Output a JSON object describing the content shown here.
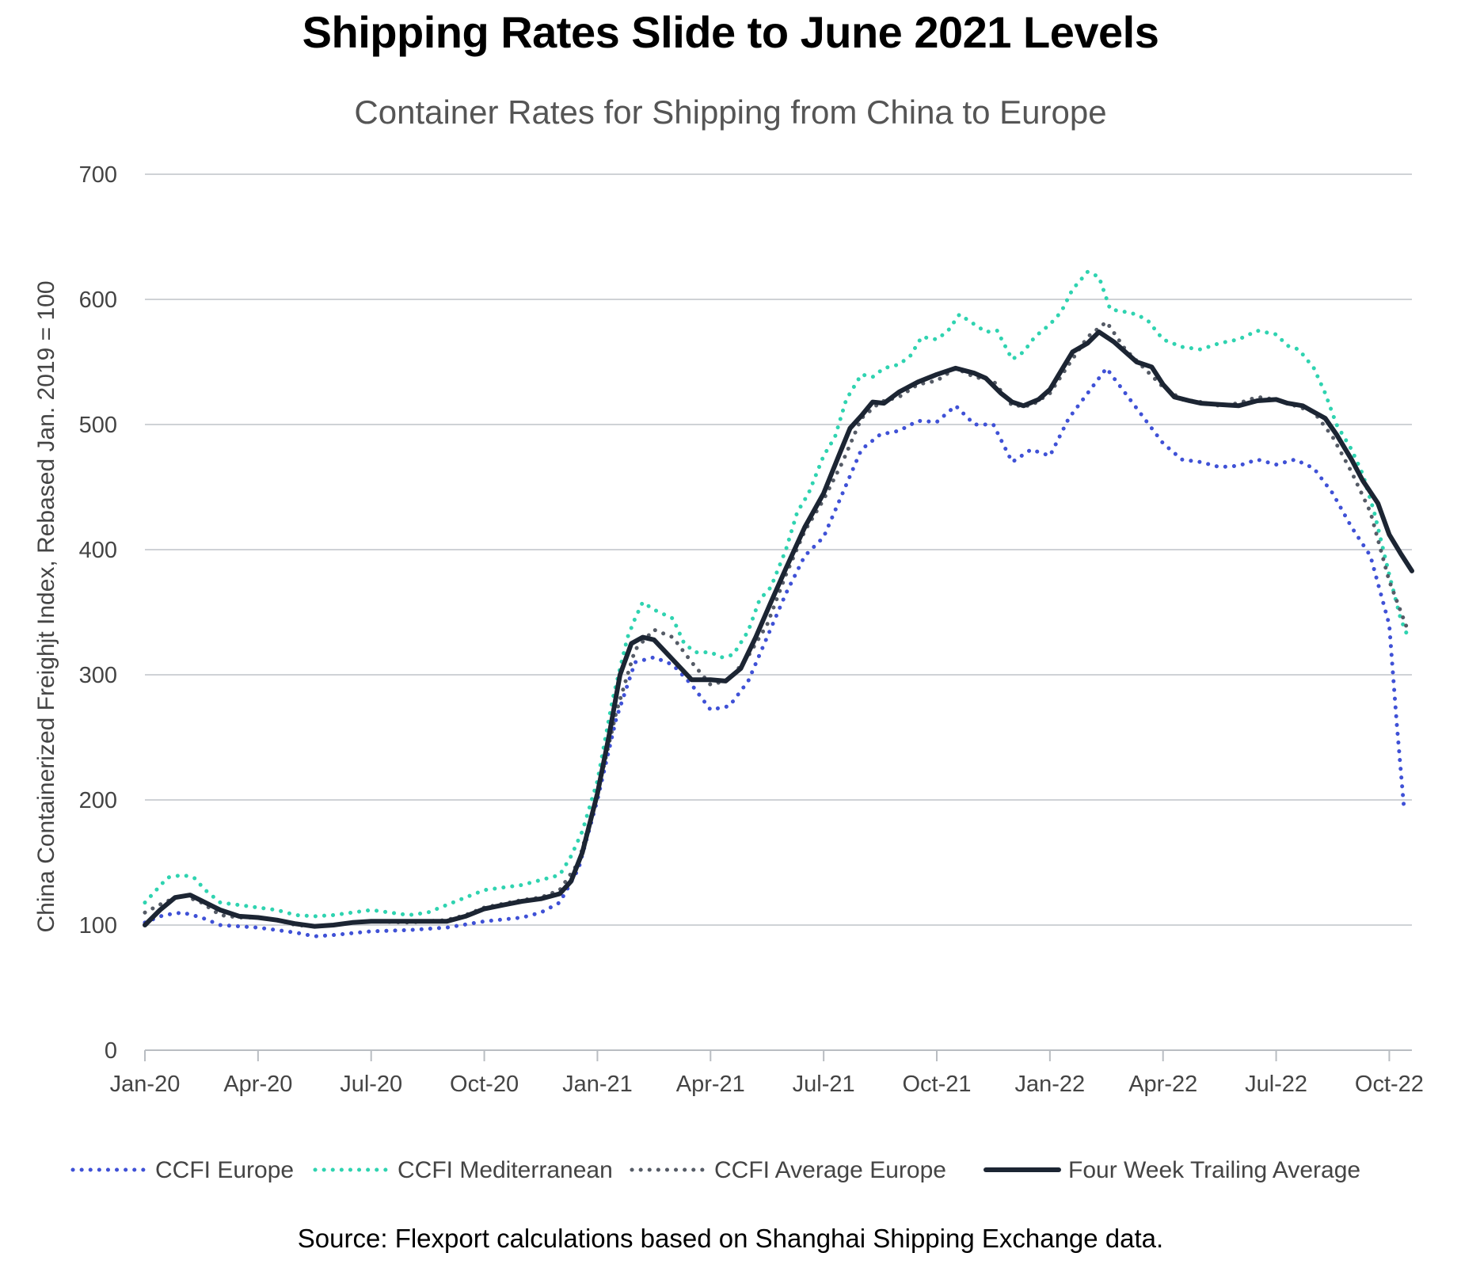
{
  "title": "Shipping Rates Slide to June 2021 Levels",
  "source": "Source: Flexport calculations based on Shanghai Shipping Exchange data.",
  "chart_data": {
    "type": "line",
    "title": "Shipping Rates Slide to June 2021 Levels",
    "subtitle": "Container Rates for Shipping from China to Europe",
    "xlabel": "",
    "ylabel": "China Containerized Freighjt Index, Rebased Jan. 2019 = 100",
    "xlim": [
      0,
      33.6
    ],
    "ylim": [
      0,
      700
    ],
    "yticks": [
      0,
      100,
      200,
      300,
      400,
      500,
      600,
      700
    ],
    "grid": true,
    "legend_position": "bottom",
    "x_ticks": [
      {
        "x": 0,
        "label": "Jan-20"
      },
      {
        "x": 3,
        "label": "Apr-20"
      },
      {
        "x": 6,
        "label": "Jul-20"
      },
      {
        "x": 9,
        "label": "Oct-20"
      },
      {
        "x": 12,
        "label": "Jan-21"
      },
      {
        "x": 15,
        "label": "Apr-21"
      },
      {
        "x": 18,
        "label": "Jul-21"
      },
      {
        "x": 21,
        "label": "Oct-21"
      },
      {
        "x": 24,
        "label": "Jan-22"
      },
      {
        "x": 27,
        "label": "Apr-22"
      },
      {
        "x": 30,
        "label": "Jul-22"
      },
      {
        "x": 33,
        "label": "Oct-22"
      }
    ],
    "x_units": "months since Jan 2020",
    "series": [
      {
        "name": "CCFI Europe",
        "style": "dotted",
        "color": "#3f51d6",
        "points": [
          [
            0,
            102
          ],
          [
            0.5,
            108
          ],
          [
            1,
            110
          ],
          [
            1.5,
            106
          ],
          [
            2,
            100
          ],
          [
            3,
            98
          ],
          [
            4,
            94
          ],
          [
            4.5,
            91
          ],
          [
            5,
            92
          ],
          [
            6,
            95
          ],
          [
            7,
            96
          ],
          [
            7.5,
            97
          ],
          [
            8,
            98
          ],
          [
            9,
            103
          ],
          [
            10,
            106
          ],
          [
            10.5,
            110
          ],
          [
            11,
            118
          ],
          [
            11.5,
            145
          ],
          [
            12,
            200
          ],
          [
            12.5,
            265
          ],
          [
            13,
            310
          ],
          [
            13.5,
            314
          ],
          [
            14,
            308
          ],
          [
            14.5,
            292
          ],
          [
            15,
            272
          ],
          [
            15.5,
            275
          ],
          [
            16,
            295
          ],
          [
            16.5,
            330
          ],
          [
            17,
            365
          ],
          [
            17.5,
            395
          ],
          [
            18,
            410
          ],
          [
            18.5,
            445
          ],
          [
            19,
            480
          ],
          [
            19.5,
            492
          ],
          [
            20,
            495
          ],
          [
            20.5,
            503
          ],
          [
            21,
            502
          ],
          [
            21.5,
            515
          ],
          [
            22,
            500
          ],
          [
            22.5,
            500
          ],
          [
            23,
            470
          ],
          [
            23.5,
            480
          ],
          [
            24,
            475
          ],
          [
            24.5,
            505
          ],
          [
            25,
            525
          ],
          [
            25.5,
            545
          ],
          [
            26,
            525
          ],
          [
            26.5,
            505
          ],
          [
            27,
            485
          ],
          [
            27.5,
            472
          ],
          [
            28,
            470
          ],
          [
            28.5,
            466
          ],
          [
            29,
            467
          ],
          [
            29.5,
            472
          ],
          [
            30,
            468
          ],
          [
            30.5,
            472
          ],
          [
            31,
            465
          ],
          [
            31.5,
            445
          ],
          [
            32,
            418
          ],
          [
            32.5,
            395
          ],
          [
            33,
            340
          ],
          [
            33.2,
            260
          ],
          [
            33.4,
            190
          ]
        ]
      },
      {
        "name": "CCFI Mediterranean",
        "style": "dotted",
        "color": "#2fd3b0",
        "points": [
          [
            0,
            118
          ],
          [
            0.3,
            128
          ],
          [
            0.6,
            138
          ],
          [
            1,
            140
          ],
          [
            1.3,
            138
          ],
          [
            1.6,
            128
          ],
          [
            2,
            118
          ],
          [
            2.5,
            116
          ],
          [
            3,
            114
          ],
          [
            3.5,
            112
          ],
          [
            4,
            108
          ],
          [
            4.5,
            107
          ],
          [
            5,
            108
          ],
          [
            5.5,
            110
          ],
          [
            6,
            112
          ],
          [
            7,
            108
          ],
          [
            7.5,
            110
          ],
          [
            8,
            116
          ],
          [
            8.5,
            122
          ],
          [
            9,
            128
          ],
          [
            9.5,
            130
          ],
          [
            10,
            132
          ],
          [
            10.5,
            136
          ],
          [
            11,
            140
          ],
          [
            11.3,
            155
          ],
          [
            11.6,
            175
          ],
          [
            12,
            215
          ],
          [
            12.4,
            280
          ],
          [
            12.8,
            330
          ],
          [
            13,
            345
          ],
          [
            13.2,
            358
          ],
          [
            13.5,
            352
          ],
          [
            14,
            345
          ],
          [
            14.3,
            325
          ],
          [
            14.6,
            318
          ],
          [
            15,
            318
          ],
          [
            15.3,
            314
          ],
          [
            15.6,
            316
          ],
          [
            16,
            335
          ],
          [
            16.3,
            360
          ],
          [
            16.6,
            370
          ],
          [
            17,
            400
          ],
          [
            17.3,
            430
          ],
          [
            17.6,
            445
          ],
          [
            18,
            475
          ],
          [
            18.3,
            490
          ],
          [
            18.6,
            520
          ],
          [
            19,
            540
          ],
          [
            19.3,
            538
          ],
          [
            19.6,
            545
          ],
          [
            20,
            548
          ],
          [
            20.3,
            555
          ],
          [
            20.6,
            570
          ],
          [
            21,
            568
          ],
          [
            21.3,
            575
          ],
          [
            21.6,
            588
          ],
          [
            22,
            580
          ],
          [
            22.3,
            574
          ],
          [
            22.6,
            575
          ],
          [
            23,
            552
          ],
          [
            23.3,
            558
          ],
          [
            23.6,
            570
          ],
          [
            24,
            580
          ],
          [
            24.3,
            590
          ],
          [
            24.6,
            608
          ],
          [
            25,
            622
          ],
          [
            25.3,
            618
          ],
          [
            25.6,
            592
          ],
          [
            26,
            590
          ],
          [
            26.3,
            588
          ],
          [
            26.6,
            583
          ],
          [
            27,
            568
          ],
          [
            27.5,
            562
          ],
          [
            28,
            560
          ],
          [
            28.5,
            565
          ],
          [
            29,
            568
          ],
          [
            29.5,
            575
          ],
          [
            30,
            572
          ],
          [
            30.3,
            563
          ],
          [
            30.6,
            560
          ],
          [
            31,
            545
          ],
          [
            31.3,
            525
          ],
          [
            31.6,
            500
          ],
          [
            32,
            480
          ],
          [
            32.3,
            460
          ],
          [
            32.6,
            430
          ],
          [
            33,
            380
          ],
          [
            33.3,
            345
          ],
          [
            33.5,
            330
          ]
        ]
      },
      {
        "name": "CCFI Average Europe",
        "style": "dotted",
        "color": "#555b66",
        "points": [
          [
            0,
            110
          ],
          [
            0.5,
            118
          ],
          [
            1,
            124
          ],
          [
            1.5,
            118
          ],
          [
            2,
            108
          ],
          [
            2.5,
            106
          ],
          [
            3,
            106
          ],
          [
            3.5,
            104
          ],
          [
            4,
            100
          ],
          [
            4.5,
            99
          ],
          [
            5,
            100
          ],
          [
            5.5,
            102
          ],
          [
            6,
            103
          ],
          [
            7,
            102
          ],
          [
            8,
            104
          ],
          [
            8.5,
            108
          ],
          [
            9,
            114
          ],
          [
            9.5,
            117
          ],
          [
            10,
            120
          ],
          [
            10.5,
            122
          ],
          [
            11,
            128
          ],
          [
            11.5,
            150
          ],
          [
            12,
            205
          ],
          [
            12.5,
            270
          ],
          [
            13,
            320
          ],
          [
            13.5,
            336
          ],
          [
            14,
            330
          ],
          [
            14.5,
            310
          ],
          [
            15,
            292
          ],
          [
            15.5,
            296
          ],
          [
            16,
            315
          ],
          [
            16.5,
            340
          ],
          [
            17,
            380
          ],
          [
            17.5,
            415
          ],
          [
            18,
            440
          ],
          [
            18.5,
            470
          ],
          [
            19,
            505
          ],
          [
            19.5,
            518
          ],
          [
            20,
            522
          ],
          [
            20.5,
            532
          ],
          [
            21,
            535
          ],
          [
            21.5,
            545
          ],
          [
            22,
            538
          ],
          [
            22.5,
            535
          ],
          [
            23,
            515
          ],
          [
            23.5,
            515
          ],
          [
            24,
            525
          ],
          [
            24.5,
            548
          ],
          [
            25,
            570
          ],
          [
            25.5,
            582
          ],
          [
            26,
            560
          ],
          [
            26.5,
            545
          ],
          [
            27,
            530
          ],
          [
            27.5,
            520
          ],
          [
            28,
            518
          ],
          [
            28.5,
            515
          ],
          [
            29,
            517
          ],
          [
            29.5,
            522
          ],
          [
            30,
            520
          ],
          [
            30.5,
            515
          ],
          [
            31,
            510
          ],
          [
            31.5,
            490
          ],
          [
            32,
            462
          ],
          [
            32.5,
            430
          ],
          [
            33,
            375
          ],
          [
            33.5,
            335
          ]
        ]
      },
      {
        "name": "Four Week Trailing Average",
        "style": "solid",
        "color": "#1c2533",
        "points": [
          [
            0,
            100
          ],
          [
            0.4,
            112
          ],
          [
            0.8,
            122
          ],
          [
            1.2,
            124
          ],
          [
            1.6,
            118
          ],
          [
            2,
            112
          ],
          [
            2.5,
            107
          ],
          [
            3,
            106
          ],
          [
            3.5,
            104
          ],
          [
            4,
            101
          ],
          [
            4.5,
            99
          ],
          [
            5,
            100
          ],
          [
            5.5,
            102
          ],
          [
            6,
            103
          ],
          [
            7,
            103
          ],
          [
            8,
            103
          ],
          [
            8.5,
            107
          ],
          [
            9,
            113
          ],
          [
            9.5,
            116
          ],
          [
            10,
            119
          ],
          [
            10.5,
            121
          ],
          [
            11,
            125
          ],
          [
            11.3,
            135
          ],
          [
            11.6,
            158
          ],
          [
            12,
            205
          ],
          [
            12.3,
            250
          ],
          [
            12.6,
            300
          ],
          [
            12.9,
            325
          ],
          [
            13.2,
            330
          ],
          [
            13.5,
            328
          ],
          [
            14,
            312
          ],
          [
            14.5,
            296
          ],
          [
            15,
            296
          ],
          [
            15.4,
            295
          ],
          [
            15.8,
            305
          ],
          [
            16.2,
            330
          ],
          [
            16.6,
            358
          ],
          [
            17,
            385
          ],
          [
            17.5,
            418
          ],
          [
            18,
            445
          ],
          [
            18.4,
            475
          ],
          [
            18.7,
            497
          ],
          [
            19,
            507
          ],
          [
            19.3,
            518
          ],
          [
            19.6,
            517
          ],
          [
            20,
            526
          ],
          [
            20.5,
            534
          ],
          [
            21,
            540
          ],
          [
            21.5,
            545
          ],
          [
            22,
            541
          ],
          [
            22.3,
            537
          ],
          [
            22.7,
            525
          ],
          [
            23,
            518
          ],
          [
            23.3,
            515
          ],
          [
            23.7,
            520
          ],
          [
            24,
            528
          ],
          [
            24.3,
            543
          ],
          [
            24.6,
            558
          ],
          [
            25,
            565
          ],
          [
            25.3,
            574
          ],
          [
            25.7,
            566
          ],
          [
            26,
            558
          ],
          [
            26.3,
            550
          ],
          [
            26.7,
            546
          ],
          [
            27,
            532
          ],
          [
            27.3,
            522
          ],
          [
            27.7,
            519
          ],
          [
            28,
            517
          ],
          [
            28.5,
            516
          ],
          [
            29,
            515
          ],
          [
            29.5,
            519
          ],
          [
            30,
            520
          ],
          [
            30.3,
            517
          ],
          [
            30.7,
            515
          ],
          [
            31,
            510
          ],
          [
            31.3,
            505
          ],
          [
            31.6,
            492
          ],
          [
            32,
            472
          ],
          [
            32.3,
            455
          ],
          [
            32.7,
            437
          ],
          [
            33,
            412
          ],
          [
            33.3,
            397
          ],
          [
            33.6,
            383
          ]
        ]
      }
    ]
  }
}
